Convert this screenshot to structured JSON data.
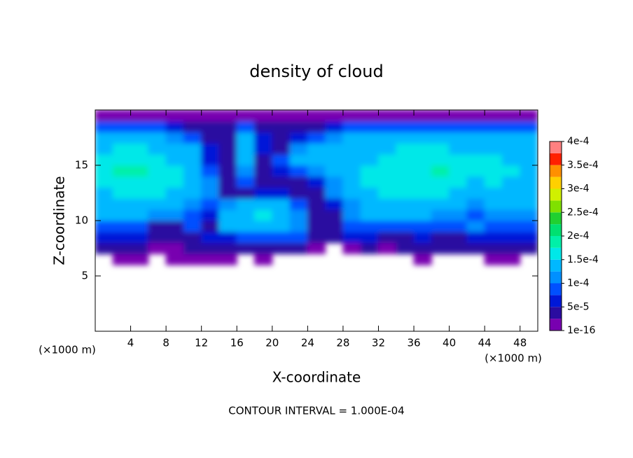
{
  "chart_data": {
    "type": "contour",
    "title": "density of cloud",
    "xlabel": "X-coordinate",
    "ylabel": "Z-coordinate",
    "x_unit_left": "(×1000 m)",
    "x_unit_right": "(×1000 m)",
    "footnote": "CONTOUR INTERVAL = 1.000E-04",
    "xlim": [
      0,
      50
    ],
    "ylim": [
      0,
      20
    ],
    "xticks": [
      4,
      8,
      12,
      16,
      20,
      24,
      28,
      32,
      36,
      40,
      44,
      48
    ],
    "yticks": [
      5,
      10,
      15
    ],
    "x": [
      1,
      3,
      5,
      7,
      9,
      11,
      13,
      15,
      17,
      19,
      21,
      23,
      25,
      27,
      29,
      31,
      33,
      35,
      37,
      39,
      41,
      43,
      45,
      47,
      49
    ],
    "y": [
      6.5,
      7.5,
      8.5,
      9.5,
      10.5,
      11.5,
      12.5,
      13.5,
      14.5,
      15.5,
      16.5,
      17.5,
      18.5,
      19.5
    ],
    "z": [
      [
        0,
        1e-05,
        1e-05,
        0,
        1e-05,
        1e-05,
        1e-05,
        1e-05,
        0,
        1e-05,
        0,
        0,
        0,
        0,
        0,
        0,
        0,
        0,
        1e-05,
        0,
        0,
        0,
        1e-05,
        1e-05,
        0
      ],
      [
        4e-05,
        4e-05,
        3e-05,
        2e-05,
        2e-05,
        3e-05,
        4e-05,
        5e-05,
        5e-05,
        5e-05,
        5e-05,
        3e-05,
        1e-05,
        0,
        2e-05,
        3e-05,
        2e-05,
        3e-05,
        3e-05,
        3e-05,
        3e-05,
        3e-05,
        4e-05,
        4e-05,
        3e-05
      ],
      [
        7e-05,
        7e-05,
        6e-05,
        3e-05,
        4e-05,
        5e-05,
        6e-05,
        7e-05,
        8e-05,
        8e-05,
        8e-05,
        8e-05,
        3e-05,
        5e-05,
        6e-05,
        6e-05,
        4e-05,
        5e-05,
        6e-05,
        5e-05,
        5e-05,
        6e-05,
        6e-05,
        6e-05,
        6e-05
      ],
      [
        0.0001,
        0.0001,
        9e-05,
        4e-05,
        5e-05,
        8e-05,
        5e-05,
        0.00013,
        0.00015,
        0.00015,
        0.00015,
        0.00012,
        3e-05,
        5e-05,
        9e-05,
        0.0001,
        0.0001,
        0.0001,
        0.0001,
        0.0001,
        0.0001,
        0.00011,
        0.0001,
        0.0001,
        0.0001
      ],
      [
        0.00013,
        0.00013,
        0.00013,
        0.00012,
        0.00011,
        9e-05,
        6e-05,
        0.00014,
        0.00015,
        0.00016,
        0.00015,
        0.00012,
        3e-05,
        3e-05,
        0.00011,
        0.00013,
        0.00013,
        0.00013,
        0.00013,
        0.00012,
        0.00012,
        8e-05,
        0.00012,
        0.00012,
        0.00012
      ],
      [
        0.00014,
        0.00015,
        0.00015,
        0.00015,
        0.00014,
        0.00012,
        8e-05,
        0.00012,
        0.00014,
        0.00014,
        0.00013,
        0.0001,
        3e-05,
        6e-05,
        0.00012,
        0.00014,
        0.00015,
        0.00015,
        0.00015,
        0.00014,
        0.00013,
        0.00011,
        0.00013,
        0.00013,
        0.00013
      ],
      [
        0.00015,
        0.00016,
        0.00016,
        0.00016,
        0.00015,
        0.00014,
        0.00011,
        4e-05,
        5e-05,
        6e-05,
        7e-05,
        5e-05,
        3e-05,
        0.00011,
        0.00014,
        0.00015,
        0.00016,
        0.00016,
        0.00016,
        0.00016,
        0.00015,
        0.00013,
        0.00015,
        0.00014,
        0.00014
      ],
      [
        0.00016,
        0.00017,
        0.00017,
        0.00017,
        0.00016,
        0.00015,
        0.00012,
        3e-05,
        8e-05,
        5e-05,
        3e-05,
        4e-05,
        6e-05,
        0.00012,
        0.00015,
        0.00016,
        0.00016,
        0.00017,
        0.00017,
        0.00017,
        0.00017,
        0.00015,
        0.00016,
        0.00015,
        0.00015
      ],
      [
        0.00017,
        0.00018,
        0.00018,
        0.00017,
        0.00016,
        0.00015,
        0.0001,
        3e-05,
        0.00012,
        4e-05,
        6e-05,
        0.0001,
        0.00012,
        0.00014,
        0.00015,
        0.00016,
        0.00016,
        0.00017,
        0.00017,
        0.00018,
        0.00017,
        0.00016,
        0.00016,
        0.00016,
        0.00015
      ],
      [
        0.00016,
        0.00017,
        0.00017,
        0.00016,
        0.00015,
        0.00014,
        7e-05,
        3e-05,
        0.00014,
        5e-05,
        0.0001,
        0.00013,
        0.00014,
        0.00015,
        0.00015,
        0.00015,
        0.00016,
        0.00016,
        0.00016,
        0.00016,
        0.00016,
        0.00016,
        0.00016,
        0.00015,
        0.00015
      ],
      [
        0.00015,
        0.00016,
        0.00016,
        0.00015,
        0.00014,
        0.00013,
        6e-05,
        3e-05,
        0.00015,
        7e-05,
        5e-05,
        0.00012,
        0.00013,
        0.00014,
        0.00015,
        0.00015,
        0.00015,
        0.00016,
        0.00016,
        0.00016,
        0.00015,
        0.00015,
        0.00015,
        0.00015,
        0.00014
      ],
      [
        0.00013,
        0.00014,
        0.00014,
        0.00013,
        0.00012,
        0.0001,
        5e-05,
        3e-05,
        0.00014,
        6e-05,
        5e-05,
        6e-05,
        0.0001,
        0.00012,
        0.00014,
        0.00014,
        0.00014,
        0.00015,
        0.00015,
        0.00015,
        0.00014,
        0.00014,
        0.00014,
        0.00014,
        0.00013
      ],
      [
        9e-05,
        9e-05,
        9e-05,
        8e-05,
        7e-05,
        5e-05,
        4e-05,
        3e-05,
        8e-05,
        5e-05,
        3e-05,
        4e-05,
        5e-05,
        6e-05,
        8e-05,
        9e-05,
        0.0001,
        0.0001,
        0.0001,
        0.0001,
        0.0001,
        0.0001,
        0.0001,
        0.0001,
        9e-05
      ],
      [
        2e-05,
        2e-05,
        2e-05,
        1e-05,
        1e-05,
        1e-05,
        2e-05,
        1e-05,
        1e-05,
        1e-05,
        2e-05,
        1e-05,
        1e-05,
        1e-05,
        1e-05,
        1e-05,
        1e-05,
        1e-05,
        1e-05,
        1e-05,
        1e-05,
        1e-05,
        1e-05,
        1e-05,
        1e-05
      ]
    ],
    "colorbar_ticks": [
      1e-16,
      {
        "value": 5e-05,
        "label": "5e-5"
      },
      {
        "value": 0.0001,
        "label": "1e-4"
      },
      {
        "value": 0.00015,
        "label": "1.5e-4"
      },
      {
        "value": 0.0002,
        "label": "2e-4"
      },
      {
        "value": 0.00025,
        "label": "2.5e-4"
      },
      {
        "value": 0.0003,
        "label": "3e-4"
      },
      {
        "value": 0.00035,
        "label": "3.5e-4"
      },
      {
        "value": 0.0004,
        "label": "4e-4"
      }
    ],
    "colors": [
      "#7800b0",
      "#2a0ca0",
      "#0018d8",
      "#0050ff",
      "#0090ff",
      "#00b8ff",
      "#00e8e8",
      "#00f0a8",
      "#00e070",
      "#20d030",
      "#80e000",
      "#d0f000",
      "#ffd000",
      "#ff9000",
      "#ff2000",
      "#ff8080"
    ]
  }
}
